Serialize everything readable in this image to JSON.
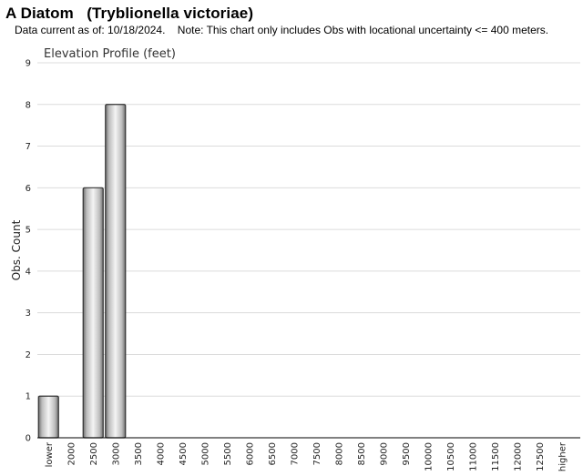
{
  "header": {
    "title": "A Diatom   (Tryblionella victoriae)",
    "subtitle": "Data current as of: 10/18/2024.    Note: This chart only includes Obs with locational uncertainty <= 400 meters."
  },
  "chart_data": {
    "type": "bar",
    "title": "Elevation Profile (feet)",
    "xlabel": "",
    "ylabel": "Obs. Count",
    "ylim": [
      0,
      9
    ],
    "yticks": [
      0,
      1,
      2,
      3,
      4,
      5,
      6,
      7,
      8,
      9
    ],
    "grid": true,
    "categories": [
      "lower",
      "2000",
      "2500",
      "3000",
      "3500",
      "4000",
      "4500",
      "5000",
      "5500",
      "6000",
      "6500",
      "7000",
      "7500",
      "8000",
      "8500",
      "9000",
      "9500",
      "10000",
      "10500",
      "11000",
      "11500",
      "12000",
      "12500",
      "higher"
    ],
    "values": [
      1,
      0,
      6,
      8,
      0,
      0,
      0,
      0,
      0,
      0,
      0,
      0,
      0,
      0,
      0,
      0,
      0,
      0,
      0,
      0,
      0,
      0,
      0,
      0
    ]
  }
}
